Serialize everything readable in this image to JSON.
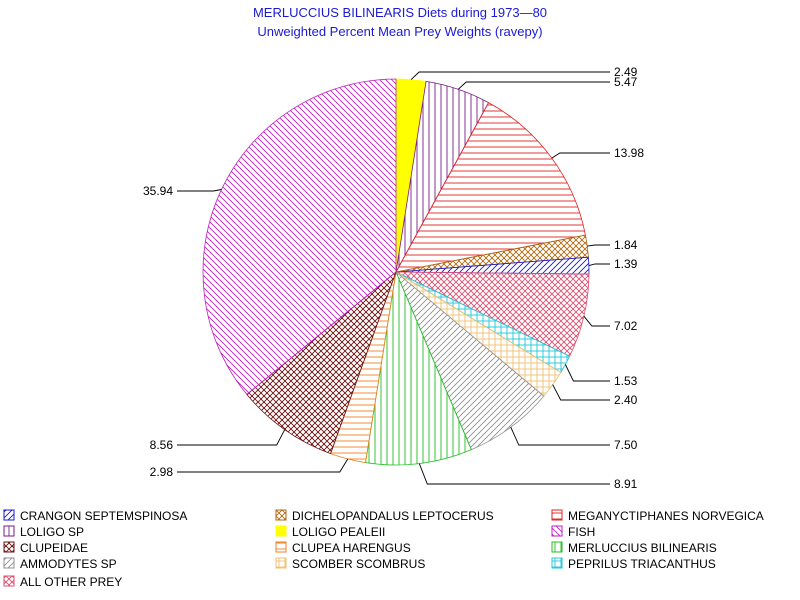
{
  "chart_data": {
    "type": "pie",
    "title": "MERLUCCIUS BILINEARIS Diets during 1973—80",
    "subtitle": "Unweighted Percent Mean Prey Weights (ravepy)",
    "series": [
      {
        "name": "LOLIGO PEALEII",
        "value": 2.49,
        "color": "#ffff00",
        "pattern": "solid",
        "label": "2.49"
      },
      {
        "name": "LOLIGO SP",
        "value": 5.47,
        "color": "#7a1a8a",
        "pattern": "vertical",
        "label": "5.47"
      },
      {
        "name": "MEGANYCTIPHANES NORVEGICA",
        "value": 13.98,
        "color": "#e02020",
        "pattern": "horizontal",
        "label": "13.98"
      },
      {
        "name": "DICHELOPANDALUS LEPTOCERUS",
        "value": 1.84,
        "color": "#b06a10",
        "pattern": "crosshatch",
        "label": "1.84"
      },
      {
        "name": "CRANGON SEPTEMSPINOSA",
        "value": 1.39,
        "color": "#1a1ad6",
        "pattern": "diagonal-up",
        "label": "1.39"
      },
      {
        "name": "ALL OTHER PREY",
        "value": 7.02,
        "color": "#e05070",
        "pattern": "crosshatch",
        "label": "7.02"
      },
      {
        "name": "PEPRILUS TRIACANTHUS",
        "value": 1.53,
        "color": "#20c8d8",
        "pattern": "grid",
        "label": "1.53"
      },
      {
        "name": "SCOMBER SCOMBRUS",
        "value": 2.4,
        "color": "#f0c070",
        "pattern": "grid",
        "label": "2.40"
      },
      {
        "name": "AMMODYTES SP",
        "value": 7.5,
        "color": "#909090",
        "pattern": "diagonal-up",
        "label": "7.50"
      },
      {
        "name": "MERLUCCIUS BILINEARIS",
        "value": 8.91,
        "color": "#20c020",
        "pattern": "vertical",
        "label": "8.91"
      },
      {
        "name": "CLUPEA HARENGUS",
        "value": 2.98,
        "color": "#f08020",
        "pattern": "horizontal",
        "label": "2.98"
      },
      {
        "name": "CLUPEIDAE",
        "value": 8.56,
        "color": "#6a1010",
        "pattern": "crosshatch",
        "label": "8.56"
      },
      {
        "name": "FISH",
        "value": 35.94,
        "color": "#c020c0",
        "pattern": "diagonal-down",
        "label": "35.94"
      }
    ],
    "legend": [
      {
        "name": "CRANGON SEPTEMSPINOSA",
        "color": "#1a1ad6",
        "pattern": "diagonal-up"
      },
      {
        "name": "DICHELOPANDALUS LEPTOCERUS",
        "color": "#b06a10",
        "pattern": "crosshatch"
      },
      {
        "name": "MEGANYCTIPHANES NORVEGICA",
        "color": "#e02020",
        "pattern": "horizontal"
      },
      {
        "name": "LOLIGO SP",
        "color": "#7a1a8a",
        "pattern": "vertical"
      },
      {
        "name": "LOLIGO PEALEII",
        "color": "#ffff00",
        "pattern": "solid"
      },
      {
        "name": "FISH",
        "color": "#c020c0",
        "pattern": "diagonal-down"
      },
      {
        "name": "CLUPEIDAE",
        "color": "#6a1010",
        "pattern": "crosshatch"
      },
      {
        "name": "CLUPEA HARENGUS",
        "color": "#f08020",
        "pattern": "horizontal"
      },
      {
        "name": "MERLUCCIUS BILINEARIS",
        "color": "#20c020",
        "pattern": "vertical"
      },
      {
        "name": "AMMODYTES SP",
        "color": "#909090",
        "pattern": "diagonal-up"
      },
      {
        "name": "SCOMBER SCOMBRUS",
        "color": "#f0c070",
        "pattern": "grid"
      },
      {
        "name": "PEPRILUS TRIACANTHUS",
        "color": "#20c8d8",
        "pattern": "grid"
      },
      {
        "name": "ALL OTHER PREY",
        "color": "#e05070",
        "pattern": "crosshatch"
      }
    ],
    "legend_position": "bottom"
  }
}
